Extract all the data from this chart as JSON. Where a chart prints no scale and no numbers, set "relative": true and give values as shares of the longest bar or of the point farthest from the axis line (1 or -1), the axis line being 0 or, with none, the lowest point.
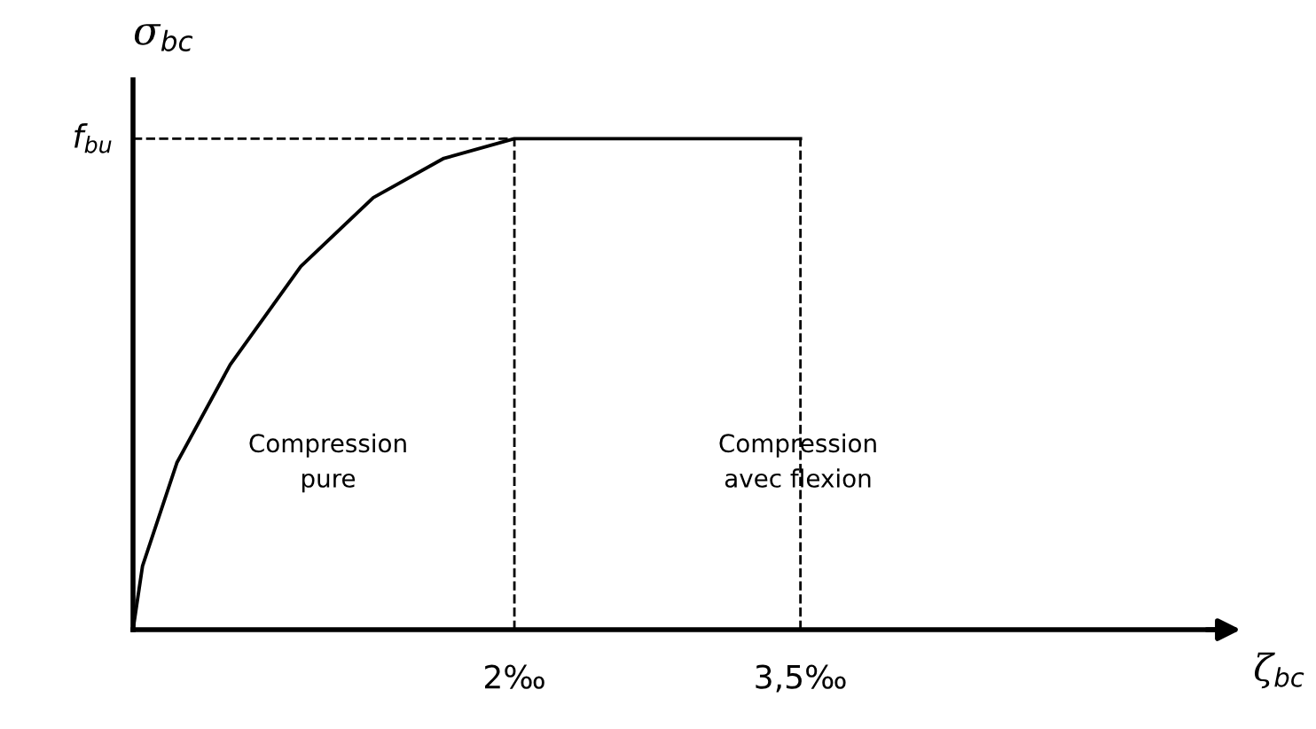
{
  "chart_data": {
    "type": "line",
    "relative": true,
    "xlabel": "ζ$_{bc}$",
    "ylabel": "σ$_{bc}$",
    "xlim": [
      0,
      5.72
    ],
    "xticks": [
      {
        "value": 2,
        "label": "2‰"
      },
      {
        "value": 3.5,
        "label": "3,5‰"
      }
    ],
    "tick_labels": "x",
    "series": [
      {
        "color": "#000000",
        "x": [
          0,
          0.05,
          0.23,
          0.51,
          0.88,
          1.26,
          1.63,
          2,
          3.5
        ],
        "values": [
          0,
          0.13,
          0.34,
          0.54,
          0.74,
          0.88,
          0.96,
          1,
          1
        ]
      }
    ],
    "ref_lines": [
      {
        "axis": "y",
        "value": 1,
        "label": "f$_{bu}$",
        "line_style": "dashed",
        "color": "#000000"
      },
      {
        "axis": "x",
        "value": 2,
        "label": null,
        "line_style": "dashed",
        "color": "#000000"
      },
      {
        "axis": "x",
        "value": 3.5,
        "label": null,
        "line_style": "dashed",
        "color": "#000000"
      }
    ],
    "annotations": [
      "Compression\npure",
      "Compression\navec flexion"
    ],
    "grid": false,
    "legend": false,
    "marker": "none",
    "line_style": "solid"
  }
}
